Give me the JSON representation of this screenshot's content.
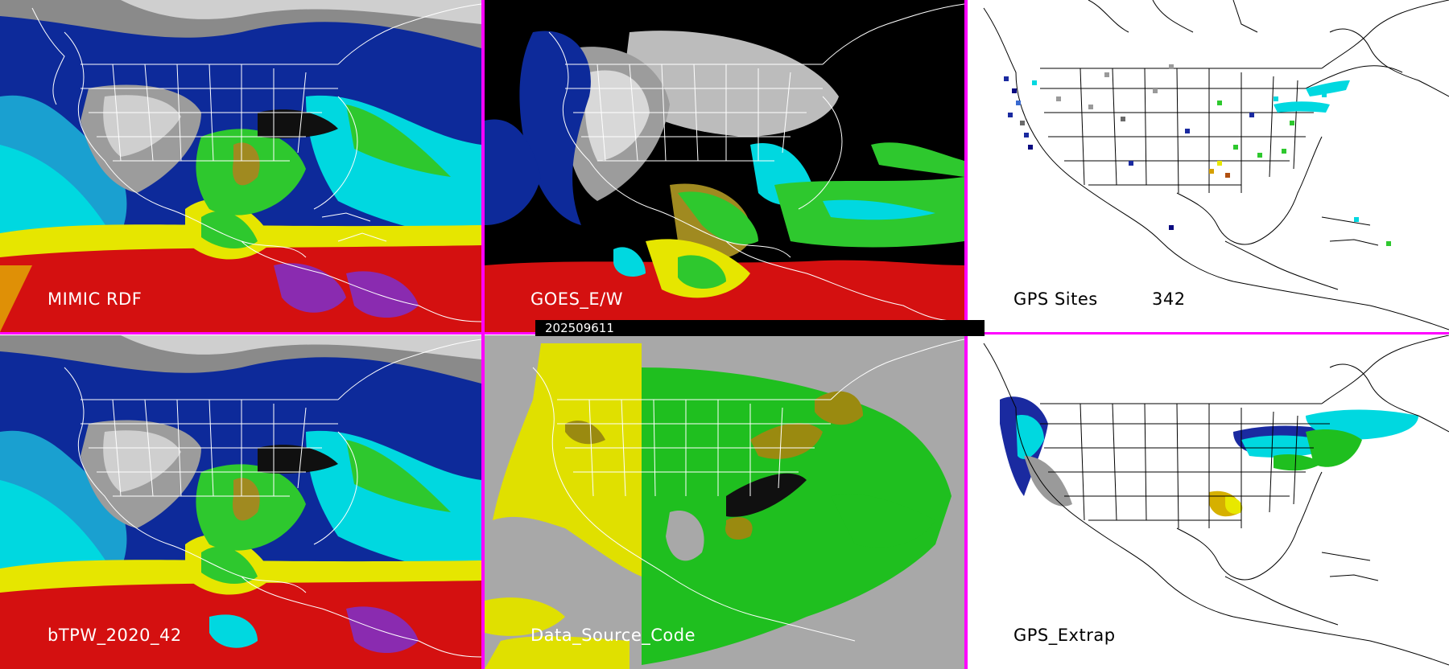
{
  "colors": {
    "separator": "#ff00ff",
    "map_border": "#ffffff",
    "ocean_deep": "#0b1f8a",
    "moist_cyan": "#00e5e5",
    "moist_green": "#22cc22",
    "moist_yellow": "#e8e800",
    "moist_red": "#dd1111",
    "dry_gray": "#9a9a9a",
    "source_gray": "#a8a8a8",
    "source_yellow": "#e0e000",
    "source_green": "#1fbf1f",
    "source_olive": "#9a8a10"
  },
  "panels": [
    {
      "id": "mimic-rdf",
      "label": "MIMIC RDF",
      "style": "tpw"
    },
    {
      "id": "goes",
      "label": "GOES_E/W",
      "style": "goes"
    },
    {
      "id": "gps-sites",
      "label": "GPS Sites",
      "count": "342",
      "style": "gps"
    },
    {
      "id": "btpw",
      "label": "bTPW_2020_42",
      "style": "tpw"
    },
    {
      "id": "data-source",
      "label": "Data_Source_Code",
      "style": "source"
    },
    {
      "id": "gps-extrap",
      "label": "GPS_Extrap",
      "style": "gpsx"
    }
  ],
  "timestamp": "202509611"
}
